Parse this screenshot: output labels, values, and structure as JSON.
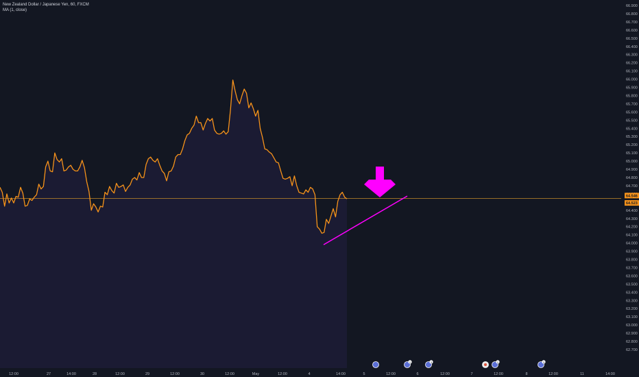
{
  "legend": {
    "title": "New Zealand Dollar / Japanese Yen, 60, FXCM",
    "indicator": "MA (1, close)"
  },
  "colors": {
    "background": "#131722",
    "area_fill": "#1b1b33",
    "price_line": "#f7931a",
    "trend_line": "#ff00ff",
    "arrow": "#ff00ff",
    "current_price_line": "#c58b2a",
    "axis_text": "#b2b5be"
  },
  "price_badges": {
    "last": "64.546",
    "ma": "64.523"
  },
  "chart_data": {
    "type": "line",
    "ylim": [
      62.7,
      66.9
    ],
    "y_ticks": [
      "66.900",
      "66.800",
      "66.700",
      "66.600",
      "66.500",
      "66.400",
      "66.300",
      "66.200",
      "66.100",
      "66.000",
      "65.900",
      "65.800",
      "65.700",
      "65.600",
      "65.500",
      "65.400",
      "65.300",
      "65.200",
      "65.100",
      "65.000",
      "64.900",
      "64.800",
      "64.700",
      "64.600",
      "64.500",
      "64.400",
      "64.300",
      "64.200",
      "64.100",
      "64.000",
      "63.900",
      "63.800",
      "63.700",
      "63.600",
      "63.500",
      "63.400",
      "63.300",
      "63.200",
      "63.100",
      "63.000",
      "62.900",
      "62.800",
      "62.700"
    ],
    "x_ticks": [
      "12:00",
      "27",
      "14:00",
      "28",
      "12:00",
      "29",
      "12:00",
      "30",
      "12:00",
      "May",
      "12:00",
      "4",
      "14:00",
      "5",
      "12:00",
      "6",
      "12:00",
      "7",
      "12:00",
      "8",
      "12:00",
      "11",
      "14:00"
    ],
    "series": [
      {
        "values": [
          64.68,
          64.62,
          64.45,
          64.6,
          64.49,
          64.55,
          64.49,
          64.57,
          64.56,
          64.68,
          64.61,
          64.45,
          64.46,
          64.54,
          64.52,
          64.56,
          64.59,
          64.72,
          64.66,
          64.69,
          64.93,
          65.0,
          64.88,
          64.87,
          65.1,
          65.02,
          64.99,
          65.03,
          64.88,
          64.89,
          64.93,
          64.95,
          64.9,
          64.88,
          64.88,
          64.93,
          65.01,
          64.92,
          64.75,
          64.63,
          64.4,
          64.48,
          64.44,
          64.38,
          64.45,
          64.44,
          64.62,
          64.59,
          64.69,
          64.64,
          64.61,
          64.73,
          64.68,
          64.69,
          64.71,
          64.63,
          64.68,
          64.71,
          64.78,
          64.8,
          64.77,
          64.86,
          64.8,
          64.8,
          64.96,
          65.03,
          65.05,
          65.01,
          64.99,
          65.03,
          64.95,
          64.88,
          64.85,
          64.76,
          64.87,
          64.88,
          64.94,
          65.05,
          65.08,
          65.08,
          65.15,
          65.25,
          65.32,
          65.34,
          65.4,
          65.44,
          65.55,
          65.47,
          65.47,
          65.38,
          65.46,
          65.52,
          65.49,
          65.52,
          65.38,
          65.34,
          65.33,
          65.34,
          65.37,
          65.33,
          65.36,
          65.63,
          65.99,
          65.86,
          65.75,
          65.7,
          65.8,
          65.88,
          65.83,
          65.65,
          65.71,
          65.64,
          65.55,
          65.62,
          65.4,
          65.29,
          65.15,
          65.14,
          65.11,
          65.09,
          65.04,
          64.99,
          64.98,
          64.88,
          64.79,
          64.78,
          64.79,
          64.81,
          64.7,
          64.82,
          64.7,
          64.62,
          64.61,
          64.6,
          64.65,
          64.62,
          64.68,
          64.66,
          64.59,
          64.2,
          64.17,
          64.12,
          64.13,
          64.29,
          64.24,
          64.33,
          64.42,
          64.32,
          64.51,
          64.59,
          64.62,
          64.56,
          64.54
        ]
      }
    ],
    "last_value": 64.546
  },
  "events": [
    {
      "icon": "news-icon"
    },
    {
      "icon": "news-icon",
      "badge": "2"
    },
    {
      "icon": "news-icon",
      "badge": "3"
    },
    {
      "icon": "dividend-icon"
    },
    {
      "icon": "news-icon",
      "badge": "2"
    },
    {
      "icon": "earnings-icon",
      "badge": "3"
    }
  ]
}
